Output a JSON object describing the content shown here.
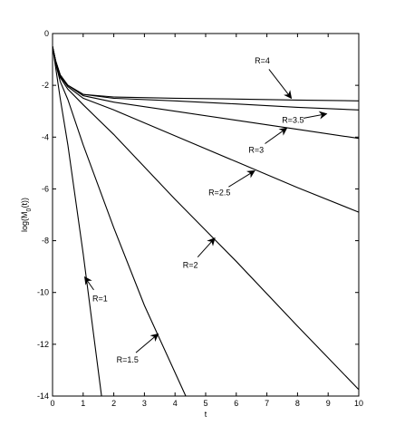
{
  "chart_data": {
    "type": "line",
    "title": "",
    "xlabel": "t",
    "ylabel_main": "log(M",
    "ylabel_sub": "0",
    "ylabel_end": "(t))",
    "xlim": [
      0,
      10
    ],
    "ylim": [
      -14,
      0
    ],
    "xticks": [
      0,
      1,
      2,
      3,
      4,
      5,
      6,
      7,
      8,
      9,
      10
    ],
    "yticks": [
      0,
      -2,
      -4,
      -6,
      -8,
      -10,
      -12,
      -14
    ],
    "grid": false,
    "legend": "none",
    "line_color": "#000000",
    "series": [
      {
        "name": "R=1",
        "x": [
          0,
          0.1,
          0.25,
          0.5,
          1.0,
          1.6
        ],
        "y": [
          -0.5,
          -1.3,
          -2.5,
          -4.3,
          -8.5,
          -14.0
        ]
      },
      {
        "name": "R=1.5",
        "x": [
          0,
          0.1,
          0.25,
          0.5,
          1.0,
          2.0,
          3.0,
          4.35
        ],
        "y": [
          -0.5,
          -1.15,
          -1.85,
          -2.55,
          -4.3,
          -7.5,
          -10.5,
          -14.0
        ]
      },
      {
        "name": "R=2",
        "x": [
          0,
          0.1,
          0.25,
          0.5,
          1.0,
          2.0,
          4.0,
          6.0,
          8.0,
          10.0
        ],
        "y": [
          -0.5,
          -1.1,
          -1.7,
          -2.15,
          -2.75,
          -3.9,
          -6.4,
          -8.8,
          -11.3,
          -13.75
        ]
      },
      {
        "name": "R=2.5",
        "x": [
          0,
          0.1,
          0.25,
          0.5,
          1.0,
          2.0,
          4.0,
          6.0,
          8.0,
          10.0
        ],
        "y": [
          -0.5,
          -1.05,
          -1.65,
          -2.05,
          -2.5,
          -2.95,
          -3.95,
          -4.95,
          -5.95,
          -6.9
        ]
      },
      {
        "name": "R=3",
        "x": [
          0,
          0.1,
          0.25,
          0.5,
          1.0,
          2.0,
          4.0,
          6.0,
          8.0,
          10.0
        ],
        "y": [
          -0.5,
          -1.05,
          -1.6,
          -2.0,
          -2.4,
          -2.65,
          -3.0,
          -3.35,
          -3.7,
          -4.05
        ]
      },
      {
        "name": "R=3.5",
        "x": [
          0,
          0.1,
          0.25,
          0.5,
          1.0,
          2.0,
          4.0,
          6.0,
          8.0,
          10.0
        ],
        "y": [
          -0.5,
          -1.05,
          -1.6,
          -2.0,
          -2.35,
          -2.5,
          -2.6,
          -2.72,
          -2.85,
          -2.95
        ]
      },
      {
        "name": "R=4",
        "x": [
          0,
          0.1,
          0.25,
          0.5,
          1.0,
          2.0,
          4.0,
          6.0,
          8.0,
          10.0
        ],
        "y": [
          -0.5,
          -1.05,
          -1.6,
          -2.0,
          -2.35,
          -2.45,
          -2.5,
          -2.53,
          -2.57,
          -2.6
        ]
      }
    ],
    "annotations": [
      {
        "text": "R=4",
        "text_x": 6.85,
        "text_y": -1.15,
        "tip_x": 7.8,
        "tip_y": -2.5
      },
      {
        "text": "R=3.5",
        "text_x": 7.85,
        "text_y": -3.45,
        "tip_x": 8.95,
        "tip_y": -3.1
      },
      {
        "text": "R=3",
        "text_x": 6.65,
        "text_y": -4.6,
        "tip_x": 7.65,
        "tip_y": -3.65
      },
      {
        "text": "R=2.5",
        "text_x": 5.45,
        "text_y": -6.25,
        "tip_x": 6.6,
        "tip_y": -5.3
      },
      {
        "text": "R=2",
        "text_x": 4.5,
        "text_y": -9.05,
        "tip_x": 5.3,
        "tip_y": -7.9
      },
      {
        "text": "R=1",
        "text_x": 1.55,
        "text_y": -10.35,
        "tip_x": 1.05,
        "tip_y": -9.4
      },
      {
        "text": "R=1.5",
        "text_x": 2.45,
        "text_y": -12.7,
        "tip_x": 3.45,
        "tip_y": -11.6
      }
    ]
  }
}
